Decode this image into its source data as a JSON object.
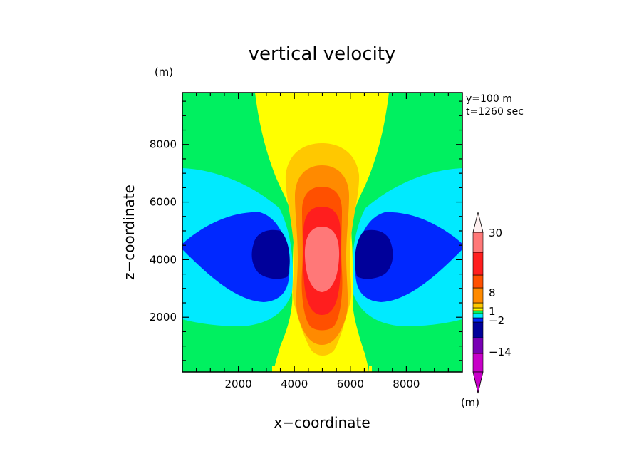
{
  "chart_data": {
    "type": "heatmap",
    "title": "vertical velocity",
    "xlabel": "x−coordinate",
    "ylabel": "z−coordinate",
    "y_unit": "(m)",
    "xlim": [
      0,
      10000
    ],
    "ylim": [
      100,
      9800
    ],
    "xticks": [
      2000,
      4000,
      6000,
      8000
    ],
    "yticks": [
      2000,
      4000,
      6000,
      8000
    ],
    "annotations": [
      "y=100 m",
      "t=1260 sec"
    ],
    "colorbar": {
      "unit": "(m)",
      "tick_labels": [
        "30",
        "8",
        "1",
        "−2",
        "−14"
      ],
      "colors": [
        "#c800c8",
        "#7800b4",
        "#00009a",
        "#0028ff",
        "#00eaff",
        "#00f060",
        "#ffff00",
        "#ffc800",
        "#ff8a00",
        "#ff5000",
        "#ff1e1e",
        "#ff7878",
        "#ffb4b4",
        "#ffffff"
      ]
    },
    "field_description": "Symmetric updraft centred at x=5000 m, z~4200 m (max > 30), flanked by downdraft lobes near x~2500 m and x~7500 m at z~4500 m (min ~ -14 to -2)."
  }
}
